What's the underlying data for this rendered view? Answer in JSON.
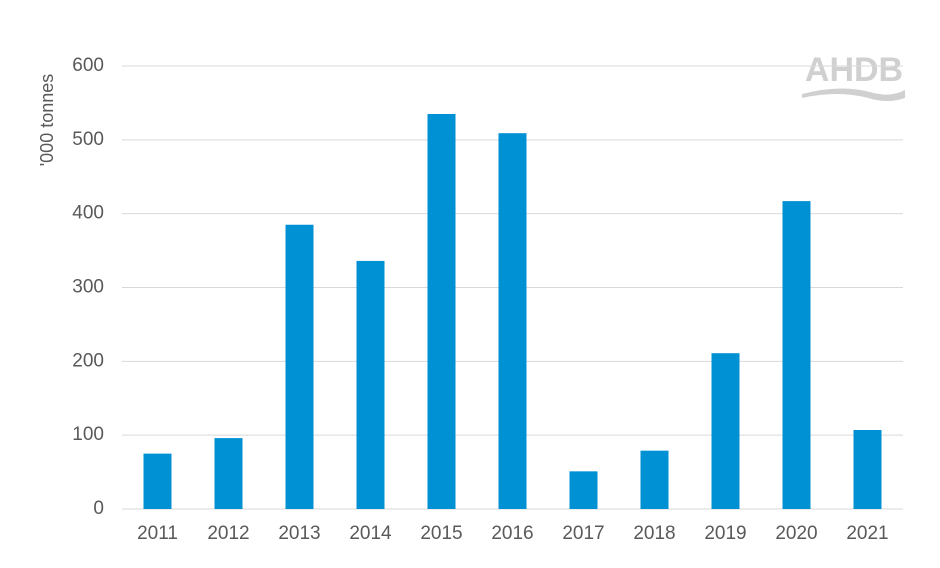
{
  "chart_data": {
    "type": "bar",
    "y_label": "'000 tonnes",
    "logo": "AHDB",
    "categories": [
      "2011",
      "2012",
      "2013",
      "2014",
      "2015",
      "2016",
      "2017",
      "2018",
      "2019",
      "2020",
      "2021"
    ],
    "values": [
      75,
      96,
      385,
      336,
      535,
      509,
      51,
      79,
      211,
      417,
      107
    ],
    "color": "#0090d4",
    "ylim": [
      0,
      600
    ],
    "yticks": [
      0,
      100,
      200,
      300,
      400,
      500,
      600
    ],
    "grid": true
  }
}
